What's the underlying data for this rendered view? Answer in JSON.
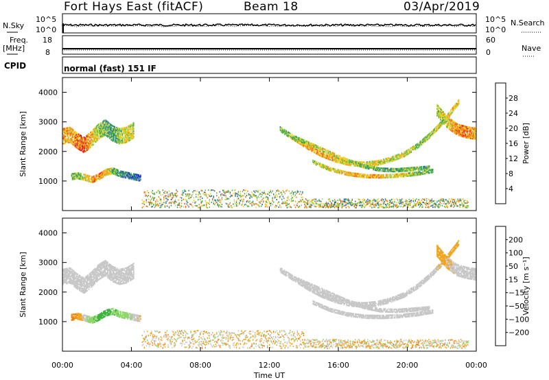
{
  "header": {
    "radar": "Fort Hays East (fitACF)",
    "beam": "Beam 18",
    "date": "03/Apr/2019"
  },
  "summary_panels": {
    "nsky_label": "N.Sky",
    "nsearch_label": "N.Search",
    "noise_ticks": [
      "10^5",
      "10^0"
    ],
    "freq_label": [
      "Freq.",
      "[MHz]"
    ],
    "freq_ticks": [
      "18",
      "8"
    ],
    "nave_label": "Nave",
    "nave_ticks": [
      "60",
      "0"
    ],
    "cpid_label": "CPID",
    "cpid_value": "normal (fast) 151 IF"
  },
  "colors": {
    "power_scale": [
      "#1a2fd6",
      "#2450b8",
      "#2f7b8a",
      "#3a9a63",
      "#5cb84a",
      "#b9d23c",
      "#f1d020",
      "#f6a21c",
      "#ef6a1a",
      "#e3331a",
      "#d10000"
    ],
    "velocity_scale": [
      "#e00000",
      "#e8401a",
      "#f07a12",
      "#f2a520",
      "#f0c850",
      "#c8c8c8",
      "#8fd66a",
      "#3db33d",
      "#2a7a4a",
      "#3a5aa8",
      "#1a30c8"
    ]
  },
  "chart_data": [
    {
      "type": "heatmap",
      "title": "",
      "xlabel": "",
      "ylabel": "Slant Range [km]",
      "xlim": [
        0,
        24
      ],
      "ylim": [
        0,
        4500
      ],
      "x_ticks": [],
      "y_ticks": [
        "1000",
        "2000",
        "3000",
        "4000"
      ],
      "colorbar": {
        "label": "Power [dB]",
        "range": [
          0,
          32
        ],
        "ticks": [
          "4",
          "8",
          "12",
          "16",
          "20",
          "24",
          "28"
        ]
      },
      "series": [
        {
          "name": "",
          "x_start": 0.0,
          "x_end": 4.1,
          "center": [
            2500,
            2550,
            2350,
            2200,
            2400,
            2650,
            2800,
            2600,
            2500,
            2550,
            2700
          ],
          "width": 500,
          "values": [
            22,
            20,
            24,
            26,
            20,
            16,
            12,
            10,
            14,
            18,
            16
          ]
        },
        {
          "name": "",
          "x_start": 0.5,
          "x_end": 4.5,
          "center": [
            1150,
            1180,
            1120,
            1050,
            1150,
            1300,
            1350,
            1250,
            1200,
            1150,
            1100
          ],
          "width": 220,
          "values": [
            12,
            14,
            18,
            22,
            24,
            20,
            14,
            10,
            8,
            6,
            4
          ]
        },
        {
          "name": "",
          "x_start": 12.6,
          "x_end": 23.0,
          "center": [
            2750,
            2450,
            2150,
            1900,
            1720,
            1600,
            1560,
            1600,
            1720,
            1900,
            2200,
            2600,
            3100,
            3700
          ],
          "width": 160,
          "values": [
            12,
            16,
            20,
            22,
            20,
            18,
            20,
            18,
            16,
            18,
            14,
            16,
            18,
            20
          ]
        },
        {
          "name": "",
          "x_start": 13.5,
          "x_end": 21.3,
          "center": [
            2450,
            2200,
            1950,
            1700,
            1500,
            1380,
            1360,
            1400,
            1450
          ],
          "width": 110,
          "values": [
            14,
            16,
            18,
            16,
            14,
            12,
            12,
            14,
            12
          ]
        },
        {
          "name": "",
          "x_start": 14.5,
          "x_end": 21.5,
          "center": [
            1650,
            1400,
            1250,
            1170,
            1160,
            1190,
            1250,
            1350
          ],
          "width": 130,
          "values": [
            14,
            18,
            20,
            22,
            20,
            18,
            14,
            12
          ]
        },
        {
          "name": "",
          "x_start": 21.7,
          "x_end": 24.0,
          "center": [
            3400,
            3000,
            2750,
            2650,
            2600
          ],
          "width": 400,
          "values": [
            14,
            18,
            22,
            24,
            20
          ]
        }
      ]
    },
    {
      "type": "heatmap",
      "title": "",
      "xlabel": "Time UT",
      "ylabel": "Slant Range [km]",
      "xlim": [
        0,
        24
      ],
      "ylim": [
        0,
        4500
      ],
      "x_ticks": [
        "00:00",
        "04:00",
        "08:00",
        "12:00",
        "16:00",
        "20:00",
        "00:00"
      ],
      "y_ticks": [
        "1000",
        "2000",
        "3000",
        "4000"
      ],
      "colorbar": {
        "label": "Velocity [m s^-1]",
        "ticks": [
          "200",
          "100",
          "50",
          "15",
          "−15",
          "−50",
          "−100",
          "−200"
        ]
      },
      "series": [
        {
          "name": "",
          "x_start": 0.0,
          "x_end": 4.1,
          "center": [
            2500,
            2550,
            2350,
            2200,
            2400,
            2650,
            2800,
            2600,
            2500,
            2550,
            2700
          ],
          "width": 500,
          "values": [
            0,
            0,
            5,
            0,
            -5,
            0,
            0,
            0,
            5,
            0,
            0
          ]
        },
        {
          "name": "",
          "x_start": 0.5,
          "x_end": 4.5,
          "center": [
            1150,
            1180,
            1120,
            1050,
            1150,
            1300,
            1350,
            1250,
            1200,
            1150,
            1100
          ],
          "width": 220,
          "values": [
            -60,
            -40,
            0,
            40,
            60,
            60,
            50,
            40,
            30,
            0,
            -10
          ]
        },
        {
          "name": "",
          "x_start": 12.6,
          "x_end": 23.0,
          "center": [
            2750,
            2450,
            2150,
            1900,
            1720,
            1600,
            1560,
            1600,
            1720,
            1900,
            2200,
            2600,
            3100,
            3700
          ],
          "width": 160,
          "values": [
            0,
            0,
            5,
            0,
            -5,
            0,
            0,
            5,
            0,
            0,
            -5,
            0,
            -30,
            -40
          ]
        },
        {
          "name": "",
          "x_start": 13.5,
          "x_end": 21.3,
          "center": [
            2450,
            2200,
            1950,
            1700,
            1500,
            1380,
            1360,
            1400,
            1450
          ],
          "width": 110,
          "values": [
            0,
            0,
            0,
            5,
            0,
            0,
            -5,
            0,
            0
          ]
        },
        {
          "name": "",
          "x_start": 14.5,
          "x_end": 21.5,
          "center": [
            1650,
            1400,
            1250,
            1170,
            1160,
            1190,
            1250,
            1350
          ],
          "width": 130,
          "values": [
            0,
            5,
            0,
            0,
            -5,
            0,
            0,
            5
          ]
        },
        {
          "name": "",
          "x_start": 21.7,
          "x_end": 24.0,
          "center": [
            3400,
            3000,
            2750,
            2650,
            2600
          ],
          "width": 400,
          "values": [
            -40,
            -20,
            0,
            5,
            0
          ]
        }
      ]
    }
  ]
}
